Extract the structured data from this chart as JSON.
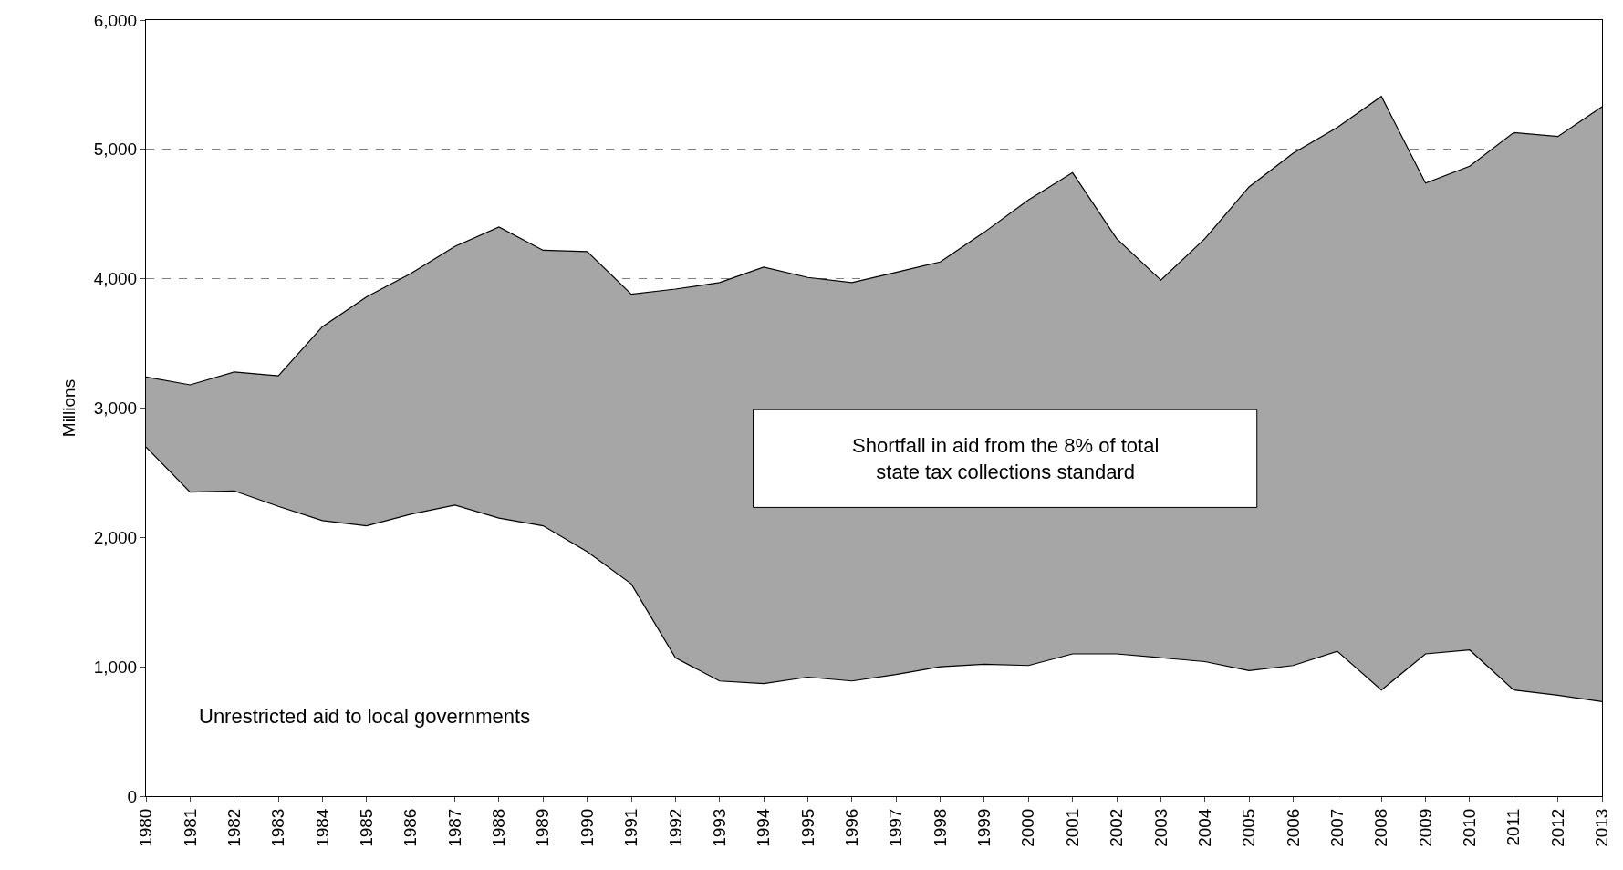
{
  "chart_data": {
    "type": "area",
    "ylabel": "Millions",
    "stacked": true,
    "categories": [
      "1980",
      "1981",
      "1982",
      "1983",
      "1984",
      "1985",
      "1986",
      "1987",
      "1988",
      "1989",
      "1990",
      "1991",
      "1992",
      "1993",
      "1994",
      "1995",
      "1996",
      "1997",
      "1998",
      "1999",
      "2000",
      "2001",
      "2002",
      "2003",
      "2004",
      "2005",
      "2006",
      "2007",
      "2008",
      "2009",
      "2010",
      "2011",
      "2012",
      "2013"
    ],
    "series": [
      {
        "color": "#ffffff",
        "values": [
          2700,
          2350,
          2360,
          2240,
          2130,
          2090,
          2180,
          2250,
          2150,
          2090,
          1890,
          1640,
          1070,
          890,
          870,
          920,
          890,
          940,
          1000,
          1020,
          1010,
          1100,
          1100,
          1070,
          1040,
          970,
          1010,
          1120,
          820,
          1100,
          1130,
          820,
          780,
          730
        ]
      },
      {
        "color": "#a6a6a6",
        "values": [
          540,
          830,
          920,
          1010,
          1500,
          1770,
          1860,
          2000,
          2250,
          2130,
          2320,
          2240,
          2850,
          3080,
          3220,
          3090,
          3080,
          3110,
          3130,
          3340,
          3600,
          3720,
          3210,
          2920,
          3270,
          3740,
          3960,
          4050,
          4590,
          3640,
          3740,
          4310,
          4320,
          4600
        ]
      }
    ],
    "ylim": [
      0,
      6000
    ],
    "yticks": [
      {
        "value": 0,
        "label": "0"
      },
      {
        "value": 1000,
        "label": "1,000"
      },
      {
        "value": 2000,
        "label": "2,000"
      },
      {
        "value": 3000,
        "label": "3,000"
      },
      {
        "value": 4000,
        "label": "4,000"
      },
      {
        "value": 5000,
        "label": "5,000"
      },
      {
        "value": 6000,
        "label": "6,000"
      }
    ],
    "grid": "y",
    "annotations": [
      "Shortfall in aid from the 8% of total state tax collections standard",
      "Unrestricted aid to local governments"
    ]
  }
}
